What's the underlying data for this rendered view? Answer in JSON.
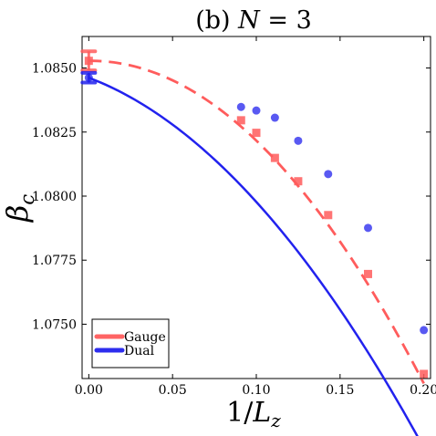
{
  "chart_data": {
    "type": "scatter",
    "title": "(b)  N = 3",
    "xlabel": "1/L_z",
    "ylabel": "β_c",
    "xlim": [
      -0.004,
      0.204
    ],
    "ylim": [
      1.07288,
      1.08623
    ],
    "x_ticks": [
      0.0,
      0.05,
      0.1,
      0.15,
      0.2
    ],
    "x_tick_labels": [
      "0.00",
      "0.05",
      "0.10",
      "0.15",
      "0.20"
    ],
    "y_ticks": [
      1.075,
      1.0775,
      1.08,
      1.0825,
      1.085
    ],
    "y_tick_labels": [
      "1.0750",
      "1.0775",
      "1.0800",
      "1.0825",
      "1.0850"
    ],
    "grid": false,
    "legend": "bottom-left",
    "series": [
      {
        "name": "Gauge",
        "color": "#ff5c5c",
        "marker": "square",
        "line_style": "dashed",
        "points": [
          {
            "x": 0.0909,
            "y": 1.08296
          },
          {
            "x": 0.1,
            "y": 1.08247
          },
          {
            "x": 0.1111,
            "y": 1.08149
          },
          {
            "x": 0.125,
            "y": 1.08058
          },
          {
            "x": 0.1429,
            "y": 1.07926
          },
          {
            "x": 0.1667,
            "y": 1.07696
          },
          {
            "x": 0.2,
            "y": 1.07306
          }
        ],
        "fit": {
          "a": 1.08528,
          "b": 0.0007,
          "c": -0.3183,
          "x_max": 0.2
        },
        "extrapolation": {
          "x": 0.0,
          "y": 1.08528,
          "yerr": 0.00037
        }
      },
      {
        "name": "Dual",
        "color": "#2222ee",
        "marker": "circle",
        "line_style": "solid",
        "points": [
          {
            "x": 0.0909,
            "y": 1.08348
          },
          {
            "x": 0.1,
            "y": 1.08334
          },
          {
            "x": 0.1111,
            "y": 1.08306
          },
          {
            "x": 0.125,
            "y": 1.08216
          },
          {
            "x": 0.1429,
            "y": 1.08086
          },
          {
            "x": 0.1667,
            "y": 1.07876
          },
          {
            "x": 0.2,
            "y": 1.07477
          }
        ],
        "fit": {
          "a": 1.08462,
          "b": -0.0247,
          "c": -0.2377,
          "x_max": 0.2
        },
        "extrapolation": {
          "x": 0.0,
          "y": 1.08462,
          "yerr": 0.00019
        }
      }
    ]
  }
}
